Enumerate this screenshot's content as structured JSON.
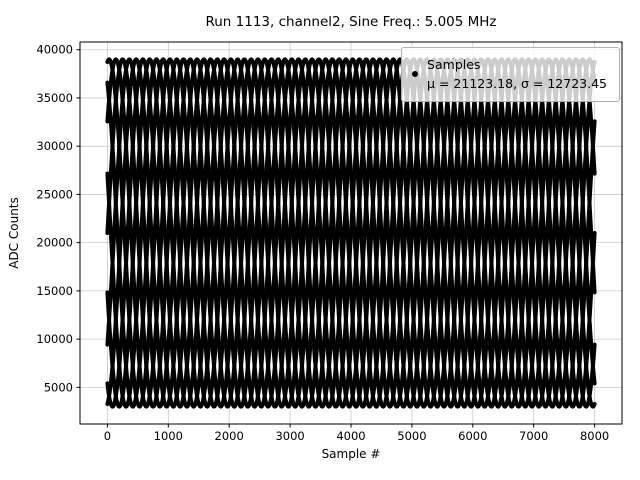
{
  "chart_data": {
    "type": "scatter",
    "title": "Run 1113, channel2, Sine Freq.: 5.005 MHz",
    "xlabel": "Sample #",
    "ylabel": "ADC Counts",
    "xlim": [
      -450,
      8450
    ],
    "ylim": [
      1200,
      40800
    ],
    "xticks": [
      0,
      1000,
      2000,
      3000,
      4000,
      5000,
      6000,
      7000,
      8000
    ],
    "yticks": [
      5000,
      10000,
      15000,
      20000,
      25000,
      30000,
      35000,
      40000
    ],
    "grid": true,
    "colors": {
      "marker": "#000000",
      "grid": "#c8c8c8",
      "spine": "#000000",
      "legend_border": "#b0b0b0"
    },
    "legend": {
      "position": "upper right",
      "marker": "dot",
      "line1": "Samples",
      "line2": "μ = 21123.18, σ = 12723.45"
    },
    "stats": {
      "mean": 21123.18,
      "sigma": 12723.45
    },
    "signal": {
      "description": "8000 ADC samples of a 5.005 MHz sine; aliasing/moiré makes the dots fall on a family of overlapping sine traces",
      "sample_min": 3000,
      "sample_max": 39000,
      "amplitude": 18000,
      "offset": 21000,
      "apparent_period_samples": 1000,
      "n_traces": 9,
      "trace_phases_deg": [
        0,
        40,
        80,
        120,
        160,
        200,
        240,
        280,
        320
      ],
      "x_start": 0,
      "x_end": 8000,
      "marker_size": 4
    }
  }
}
